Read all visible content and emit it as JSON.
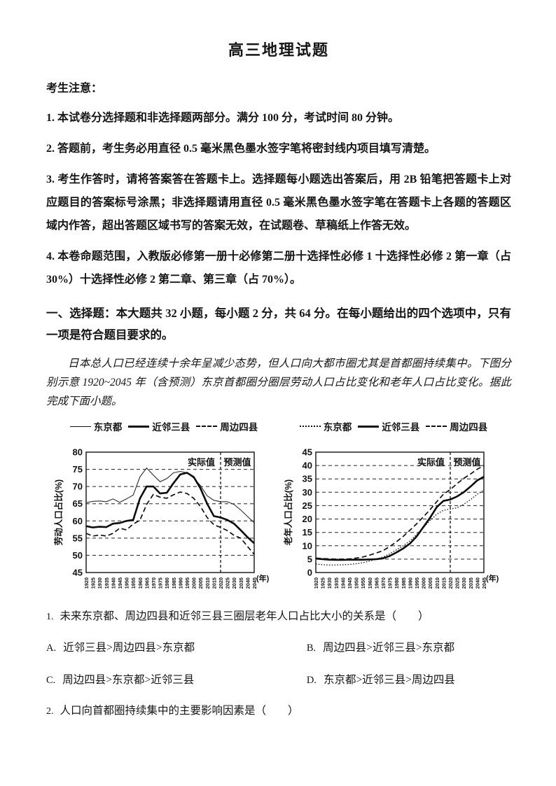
{
  "colors": {
    "ink": "#111111",
    "paper": "#ffffff"
  },
  "header": {
    "title": "高三地理试题"
  },
  "notices": {
    "heading": "考生注意：",
    "items": [
      "1. 本试卷分选择题和非选择题两部分。满分 100 分，考试时间 80 分钟。",
      "2. 答题前，考生务必用直径 0.5 毫米黑色墨水签字笔将密封线内项目填写清楚。",
      "3. 考生作答时，请将答案答在答题卡上。选择题每小题选出答案后，用 2B 铅笔把答题卡上对应题目的答案标号涂黑；非选择题请用直径 0.5 毫米黑色墨水签字笔在答题卡上各题的答题区域内作答，超出答题区域书写的答案无效，在试题卷、草稿纸上作答无效。",
      "4. 本卷命题范围，入教版必修第一册十必修第二册十选择性必修 1 十选择性必修 2 第一章（占 30%）十选择性必修 2 第二章、第三章（占 70%）。"
    ]
  },
  "section": {
    "heading": "一、选择题：本大题共 32 小题，每小题 2 分，共 64 分。在每小题给出的四个选项中，只有一项是符合题目要求的。"
  },
  "passage": "日本总人口已经连续十余年呈减少态势，但人口向大都市圈尤其是首都圈持续集中。下图分别示意 1920~2045 年（含预测）东京首都圈分圈层劳动人口占比变化和老年人口占比变化。据此完成下面小题。",
  "chart_data": [
    {
      "type": "line",
      "title": "",
      "ylabel": "劳动人口占比(%)",
      "xlabel": "(年)",
      "ylim": [
        45,
        80
      ],
      "ytick_step": 5,
      "grid": "dashed-horizontal",
      "legend_position": "top",
      "divider_x": 2020,
      "annotations": {
        "actual": "实际值",
        "forecast": "预测值"
      },
      "x": [
        1920,
        1925,
        1930,
        1935,
        1940,
        1945,
        1950,
        1955,
        1960,
        1965,
        1970,
        1975,
        1980,
        1985,
        1990,
        1995,
        2000,
        2005,
        2010,
        2015,
        2020,
        2025,
        2030,
        2035,
        2040,
        2045
      ],
      "series": [
        {
          "name": "东京都",
          "line_style": "thin",
          "values": [
            65.3,
            65.7,
            65.8,
            65.6,
            66.4,
            65.4,
            66.4,
            67.5,
            72.8,
            75.4,
            73.3,
            71.4,
            72.3,
            74.0,
            74.4,
            74.0,
            72.5,
            70.3,
            67.3,
            66.0,
            65.6,
            65.6,
            64.8,
            63.2,
            61.3,
            59.5
          ]
        },
        {
          "name": "近邻三县",
          "line_style": "thick",
          "values": [
            58.5,
            58.1,
            58.3,
            58.2,
            59.2,
            59.4,
            60.0,
            60.3,
            66.5,
            70.0,
            70.0,
            68.0,
            68.2,
            71.0,
            73.5,
            74.0,
            72.8,
            69.5,
            65.0,
            61.4,
            61.0,
            60.3,
            59.2,
            57.3,
            55.3,
            53.5
          ]
        },
        {
          "name": "周边四县",
          "line_style": "dashed",
          "values": [
            56.4,
            55.6,
            55.9,
            55.6,
            56.4,
            57.9,
            57.4,
            59.1,
            60.2,
            64.8,
            67.7,
            66.9,
            66.6,
            67.6,
            68.4,
            68.0,
            66.6,
            64.2,
            61.0,
            58.9,
            58.1,
            57.2,
            55.8,
            55.0,
            52.6,
            50.3
          ]
        }
      ]
    },
    {
      "type": "line",
      "title": "",
      "ylabel": "老年人口占比(%)",
      "xlabel": "(年)",
      "ylim": [
        0,
        45
      ],
      "ytick_step": 5,
      "grid": "dashed-horizontal",
      "legend_position": "top",
      "divider_x": 2020,
      "annotations": {
        "actual": "实际值",
        "forecast": "预测值"
      },
      "x": [
        1920,
        1925,
        1930,
        1935,
        1940,
        1945,
        1950,
        1955,
        1960,
        1965,
        1970,
        1975,
        1980,
        1985,
        1990,
        1995,
        2000,
        2005,
        2010,
        2015,
        2020,
        2025,
        2030,
        2035,
        2040,
        2045
      ],
      "series": [
        {
          "name": "东京都",
          "line_style": "dotted",
          "values": [
            3.2,
            2.9,
            2.8,
            2.8,
            2.9,
            3.0,
            3.3,
            3.7,
            4.3,
            5.0,
            5.8,
            7.0,
            8.5,
            10.0,
            11.8,
            14.2,
            16.8,
            19.5,
            21.8,
            23.3,
            23.7,
            24.2,
            25.5,
            27.2,
            29.2,
            30.8
          ]
        },
        {
          "name": "近邻三县",
          "line_style": "thick",
          "values": [
            5.2,
            5.0,
            4.8,
            4.7,
            4.7,
            4.8,
            4.8,
            4.8,
            4.9,
            5.0,
            5.3,
            6.2,
            7.5,
            9.0,
            10.8,
            13.5,
            17.0,
            20.5,
            24.5,
            26.8,
            27.3,
            28.4,
            30.0,
            32.1,
            34.4,
            35.8
          ]
        },
        {
          "name": "周边四县",
          "line_style": "dashed",
          "values": [
            5.4,
            5.2,
            5.1,
            5.0,
            5.0,
            5.1,
            5.4,
            5.8,
            6.5,
            7.3,
            8.2,
            9.7,
            11.5,
            13.5,
            15.8,
            18.2,
            20.8,
            23.5,
            26.5,
            29.3,
            31.0,
            33.2,
            35.2,
            36.8,
            38.6,
            40.0
          ]
        }
      ]
    }
  ],
  "questions": [
    {
      "number": "1.",
      "text": "未来东京都、周边四县和近邻三县三圈层老年人口占比大小的关系是（　　）",
      "options": [
        {
          "label": "A.",
          "text": "近邻三县>周边四县>东京都"
        },
        {
          "label": "B.",
          "text": "周边四县>近邻三县>东京都"
        },
        {
          "label": "C.",
          "text": "周边四县>东京都>近邻三县"
        },
        {
          "label": "D.",
          "text": "东京都>近邻三县>周边四县"
        }
      ]
    },
    {
      "number": "2.",
      "text": "人口向首都圈持续集中的主要影响因素是（　　）",
      "options": []
    }
  ]
}
